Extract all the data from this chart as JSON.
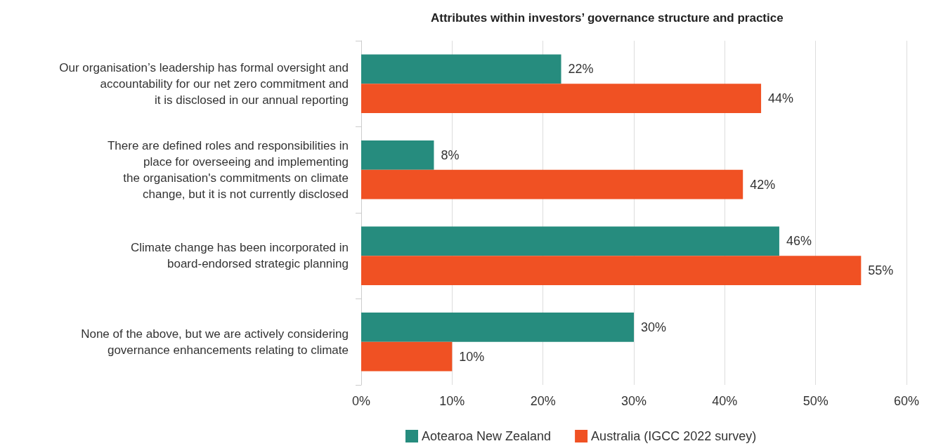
{
  "chart_data": {
    "type": "bar",
    "orientation": "horizontal",
    "title": "Attributes within investors’ governance structure and practice",
    "categories": [
      "Our organisation’s leadership has formal oversight and\naccountability for our net zero commitment and\nit is disclosed in our annual reporting",
      "There are defined roles and responsibilities in\nplace for overseeing and implementing\nthe organisation's commitments on climate\nchange, but it is not currently disclosed",
      "Climate change has been incorporated in\nboard-endorsed strategic planning",
      "None of the above, but we are actively considering\ngovernance enhancements relating to climate"
    ],
    "series": [
      {
        "name": "Aotearoa New Zealand",
        "color": "#268c7e",
        "values": [
          22,
          8,
          46,
          30
        ],
        "value_labels": [
          "22%",
          "8%",
          "46%",
          "30%"
        ]
      },
      {
        "name": "Australia (IGCC 2022 survey)",
        "color": "#f05123",
        "values": [
          44,
          42,
          55,
          10
        ],
        "value_labels": [
          "44%",
          "42%",
          "55%",
          "10%"
        ]
      }
    ],
    "xlim": [
      0,
      60
    ],
    "xticks": [
      {
        "value": 0,
        "label": "0%"
      },
      {
        "value": 10,
        "label": "10%"
      },
      {
        "value": 20,
        "label": "20%"
      },
      {
        "value": 30,
        "label": "30%"
      },
      {
        "value": 40,
        "label": "40%"
      },
      {
        "value": 50,
        "label": "50%"
      },
      {
        "value": 60,
        "label": "60%"
      }
    ],
    "grid": "x",
    "legend": "bottom"
  }
}
